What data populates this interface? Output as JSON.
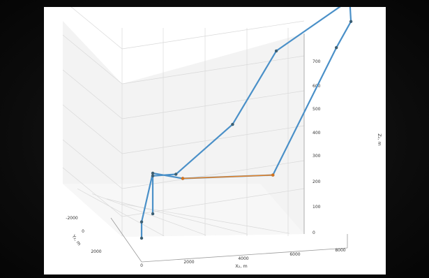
{
  "chart_data": {
    "type": "line",
    "projection": "3d",
    "xlabel": "X₂, m",
    "ylabel": "Y₂, m",
    "zlabel": "Z₂, m",
    "x_ticks": [
      "0",
      "2000",
      "4000",
      "6000",
      "8000"
    ],
    "y_ticks": [
      "-2000",
      "0",
      "2000"
    ],
    "z_ticks": [
      "0",
      "100",
      "200",
      "300",
      "400",
      "500",
      "600",
      "700"
    ],
    "xlim": [
      0,
      8000
    ],
    "ylim": [
      -2000,
      2500
    ],
    "zlim": [
      0,
      760
    ],
    "grid": true,
    "series": [
      {
        "color": "#4a90c8",
        "points": [
          {
            "x": 0,
            "y": 0,
            "z": 0
          },
          {
            "x": 0,
            "y": 0,
            "z": 60
          },
          {
            "x": 0,
            "y": -1000,
            "z": 200
          },
          {
            "x": 1600,
            "y": 0,
            "z": 210
          },
          {
            "x": 5100,
            "y": 0,
            "z": 200
          },
          {
            "x": 6700,
            "y": -2000,
            "z": 580
          },
          {
            "x": 7700,
            "y": -1000,
            "z": 710
          },
          {
            "x": 7650,
            "y": -1000,
            "z": 790
          },
          {
            "x": 4800,
            "y": -1000,
            "z": 620
          },
          {
            "x": 3100,
            "y": -1000,
            "z": 360
          },
          {
            "x": 900,
            "y": -1000,
            "z": 190
          },
          {
            "x": 0,
            "y": -1000,
            "z": 190
          },
          {
            "x": 0,
            "y": -1000,
            "z": 50
          }
        ]
      },
      {
        "color": "#e8852a",
        "points": [
          {
            "x": 1600,
            "y": 0,
            "z": 210
          },
          {
            "x": 5100,
            "y": 0,
            "z": 200
          }
        ]
      }
    ]
  }
}
